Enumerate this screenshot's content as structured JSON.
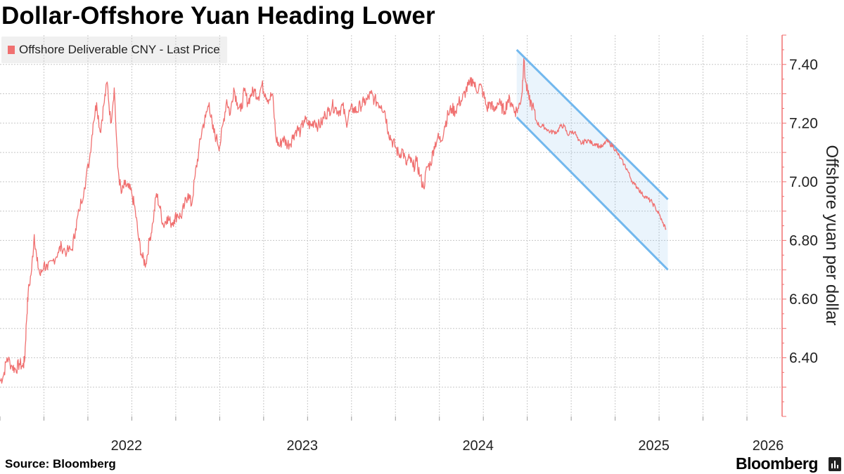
{
  "chart_data": {
    "type": "line",
    "title": "Dollar-Offshore Yuan Heading Lower",
    "ylabel": "Offshore yuan per dollar",
    "xlabel": "",
    "ylim": [
      6.2,
      7.5
    ],
    "y_ticks": [
      6.4,
      6.6,
      6.8,
      7.0,
      7.2,
      7.4
    ],
    "y_tick_labels": [
      "6.40",
      "6.60",
      "6.80",
      "7.00",
      "7.20",
      "7.40"
    ],
    "x_range": [
      2021.75,
      2026.2
    ],
    "x_ticks": [
      2022,
      2023,
      2024,
      2025,
      2026
    ],
    "x_tick_labels": [
      "2022",
      "2023",
      "2024",
      "2025",
      "2026"
    ],
    "series": [
      {
        "name": "Offshore Deliverable CNY - Last Price",
        "color": "#f07070",
        "points": [
          [
            2021.75,
            6.32
          ],
          [
            2021.77,
            6.34
          ],
          [
            2021.79,
            6.4
          ],
          [
            2021.82,
            6.37
          ],
          [
            2021.84,
            6.36
          ],
          [
            2021.86,
            6.38
          ],
          [
            2021.88,
            6.37
          ],
          [
            2021.89,
            6.39
          ],
          [
            2021.9,
            6.52
          ],
          [
            2021.91,
            6.62
          ],
          [
            2021.93,
            6.7
          ],
          [
            2021.945,
            6.82
          ],
          [
            2021.96,
            6.73
          ],
          [
            2021.98,
            6.68
          ],
          [
            2022.0,
            6.72
          ],
          [
            2022.02,
            6.7
          ],
          [
            2022.05,
            6.73
          ],
          [
            2022.08,
            6.76
          ],
          [
            2022.1,
            6.78
          ],
          [
            2022.13,
            6.76
          ],
          [
            2022.16,
            6.77
          ],
          [
            2022.18,
            6.84
          ],
          [
            2022.2,
            6.9
          ],
          [
            2022.23,
            6.98
          ],
          [
            2022.26,
            7.08
          ],
          [
            2022.28,
            7.2
          ],
          [
            2022.3,
            7.27
          ],
          [
            2022.32,
            7.17
          ],
          [
            2022.34,
            7.26
          ],
          [
            2022.36,
            7.34
          ],
          [
            2022.38,
            7.2
          ],
          [
            2022.4,
            7.32
          ],
          [
            2022.42,
            7.05
          ],
          [
            2022.44,
            6.96
          ],
          [
            2022.46,
            6.99
          ],
          [
            2022.48,
            6.98
          ],
          [
            2022.5,
            6.96
          ],
          [
            2022.52,
            6.9
          ],
          [
            2022.54,
            6.8
          ],
          [
            2022.56,
            6.74
          ],
          [
            2022.58,
            6.72
          ],
          [
            2022.6,
            6.8
          ],
          [
            2022.62,
            6.86
          ],
          [
            2022.64,
            6.96
          ],
          [
            2022.66,
            6.91
          ],
          [
            2022.68,
            6.85
          ],
          [
            2022.7,
            6.88
          ],
          [
            2022.72,
            6.86
          ],
          [
            2022.74,
            6.87
          ],
          [
            2022.76,
            6.89
          ],
          [
            2022.78,
            6.88
          ],
          [
            2022.8,
            6.92
          ],
          [
            2022.82,
            6.96
          ],
          [
            2022.84,
            6.92
          ],
          [
            2022.86,
            7.02
          ],
          [
            2022.88,
            7.1
          ],
          [
            2022.9,
            7.18
          ],
          [
            2022.92,
            7.22
          ],
          [
            2022.94,
            7.27
          ],
          [
            2022.96,
            7.18
          ],
          [
            2022.98,
            7.15
          ],
          [
            2023.0,
            7.12
          ],
          [
            2023.02,
            7.2
          ],
          [
            2023.04,
            7.28
          ],
          [
            2023.06,
            7.23
          ],
          [
            2023.08,
            7.32
          ],
          [
            2023.1,
            7.27
          ],
          [
            2023.12,
            7.24
          ],
          [
            2023.14,
            7.31
          ],
          [
            2023.16,
            7.27
          ],
          [
            2023.18,
            7.3
          ],
          [
            2023.2,
            7.31
          ],
          [
            2023.22,
            7.29
          ],
          [
            2023.24,
            7.33
          ],
          [
            2023.26,
            7.3
          ],
          [
            2023.28,
            7.28
          ],
          [
            2023.3,
            7.3
          ],
          [
            2023.32,
            7.15
          ],
          [
            2023.34,
            7.12
          ],
          [
            2023.36,
            7.15
          ],
          [
            2023.38,
            7.13
          ],
          [
            2023.4,
            7.13
          ],
          [
            2023.42,
            7.16
          ],
          [
            2023.44,
            7.18
          ],
          [
            2023.46,
            7.17
          ],
          [
            2023.48,
            7.21
          ],
          [
            2023.5,
            7.2
          ],
          [
            2023.52,
            7.19
          ],
          [
            2023.54,
            7.21
          ],
          [
            2023.56,
            7.19
          ],
          [
            2023.58,
            7.2
          ],
          [
            2023.6,
            7.23
          ],
          [
            2023.62,
            7.24
          ],
          [
            2023.64,
            7.26
          ],
          [
            2023.66,
            7.25
          ],
          [
            2023.68,
            7.24
          ],
          [
            2023.7,
            7.26
          ],
          [
            2023.72,
            7.2
          ],
          [
            2023.74,
            7.24
          ],
          [
            2023.76,
            7.25
          ],
          [
            2023.78,
            7.24
          ],
          [
            2023.8,
            7.26
          ],
          [
            2023.82,
            7.27
          ],
          [
            2023.84,
            7.28
          ],
          [
            2023.86,
            7.3
          ],
          [
            2023.88,
            7.28
          ],
          [
            2023.9,
            7.27
          ],
          [
            2023.92,
            7.26
          ],
          [
            2023.94,
            7.24
          ],
          [
            2023.96,
            7.17
          ],
          [
            2023.98,
            7.14
          ],
          [
            2024.0,
            7.12
          ],
          [
            2024.02,
            7.09
          ],
          [
            2024.04,
            7.11
          ],
          [
            2024.06,
            7.06
          ],
          [
            2024.08,
            7.08
          ],
          [
            2024.1,
            7.05
          ],
          [
            2024.12,
            7.07
          ],
          [
            2024.14,
            7.02
          ],
          [
            2024.16,
            6.98
          ],
          [
            2024.18,
            7.05
          ],
          [
            2024.2,
            7.06
          ],
          [
            2024.22,
            7.12
          ],
          [
            2024.24,
            7.15
          ],
          [
            2024.26,
            7.14
          ],
          [
            2024.28,
            7.19
          ],
          [
            2024.3,
            7.23
          ],
          [
            2024.32,
            7.25
          ],
          [
            2024.34,
            7.24
          ],
          [
            2024.36,
            7.27
          ],
          [
            2024.38,
            7.28
          ],
          [
            2024.4,
            7.31
          ],
          [
            2024.42,
            7.33
          ],
          [
            2024.44,
            7.35
          ],
          [
            2024.46,
            7.31
          ],
          [
            2024.48,
            7.33
          ],
          [
            2024.5,
            7.3
          ],
          [
            2024.52,
            7.25
          ],
          [
            2024.54,
            7.27
          ],
          [
            2024.56,
            7.24
          ],
          [
            2024.58,
            7.27
          ],
          [
            2024.6,
            7.26
          ],
          [
            2024.62,
            7.24
          ],
          [
            2024.64,
            7.28
          ],
          [
            2024.66,
            7.27
          ],
          [
            2024.68,
            7.24
          ],
          [
            2024.7,
            7.25
          ],
          [
            2024.72,
            7.3
          ],
          [
            2024.73,
            7.42
          ],
          [
            2024.74,
            7.34
          ],
          [
            2024.76,
            7.28
          ],
          [
            2024.78,
            7.26
          ],
          [
            2024.8,
            7.21
          ],
          [
            2024.82,
            7.19
          ],
          [
            2024.84,
            7.19
          ],
          [
            2024.86,
            7.18
          ],
          [
            2024.88,
            7.17
          ],
          [
            2024.9,
            7.17
          ],
          [
            2024.92,
            7.17
          ],
          [
            2024.94,
            7.19
          ],
          [
            2024.96,
            7.19
          ],
          [
            2024.98,
            7.16
          ],
          [
            2025.0,
            7.17
          ],
          [
            2025.02,
            7.17
          ],
          [
            2025.04,
            7.14
          ],
          [
            2025.06,
            7.13
          ],
          [
            2025.08,
            7.14
          ],
          [
            2025.1,
            7.14
          ],
          [
            2025.12,
            7.13
          ],
          [
            2025.14,
            7.13
          ],
          [
            2025.16,
            7.12
          ],
          [
            2025.18,
            7.12
          ],
          [
            2025.2,
            7.14
          ],
          [
            2025.22,
            7.13
          ],
          [
            2025.24,
            7.12
          ],
          [
            2025.26,
            7.1
          ],
          [
            2025.28,
            7.08
          ],
          [
            2025.3,
            7.06
          ],
          [
            2025.32,
            7.04
          ],
          [
            2025.34,
            7.01
          ],
          [
            2025.36,
            6.99
          ],
          [
            2025.38,
            6.98
          ],
          [
            2025.4,
            6.96
          ],
          [
            2025.42,
            6.95
          ],
          [
            2025.44,
            6.94
          ],
          [
            2025.46,
            6.93
          ],
          [
            2025.48,
            6.91
          ],
          [
            2025.5,
            6.89
          ],
          [
            2025.52,
            6.86
          ],
          [
            2025.54,
            6.84
          ]
        ]
      }
    ],
    "annotations": [
      {
        "type": "downward-channel",
        "color": "#72b8ee",
        "upper": [
          [
            2024.69,
            7.45
          ],
          [
            2025.55,
            6.94
          ]
        ],
        "lower": [
          [
            2024.69,
            7.22
          ],
          [
            2025.55,
            6.7
          ]
        ]
      }
    ]
  },
  "legend": {
    "label": "Offshore Deliverable CNY - Last Price"
  },
  "footer": {
    "source": "Source: Bloomberg",
    "brand": "Bloomberg"
  },
  "icons": {
    "brand_mark": "bloomberg-terminal-icon"
  }
}
